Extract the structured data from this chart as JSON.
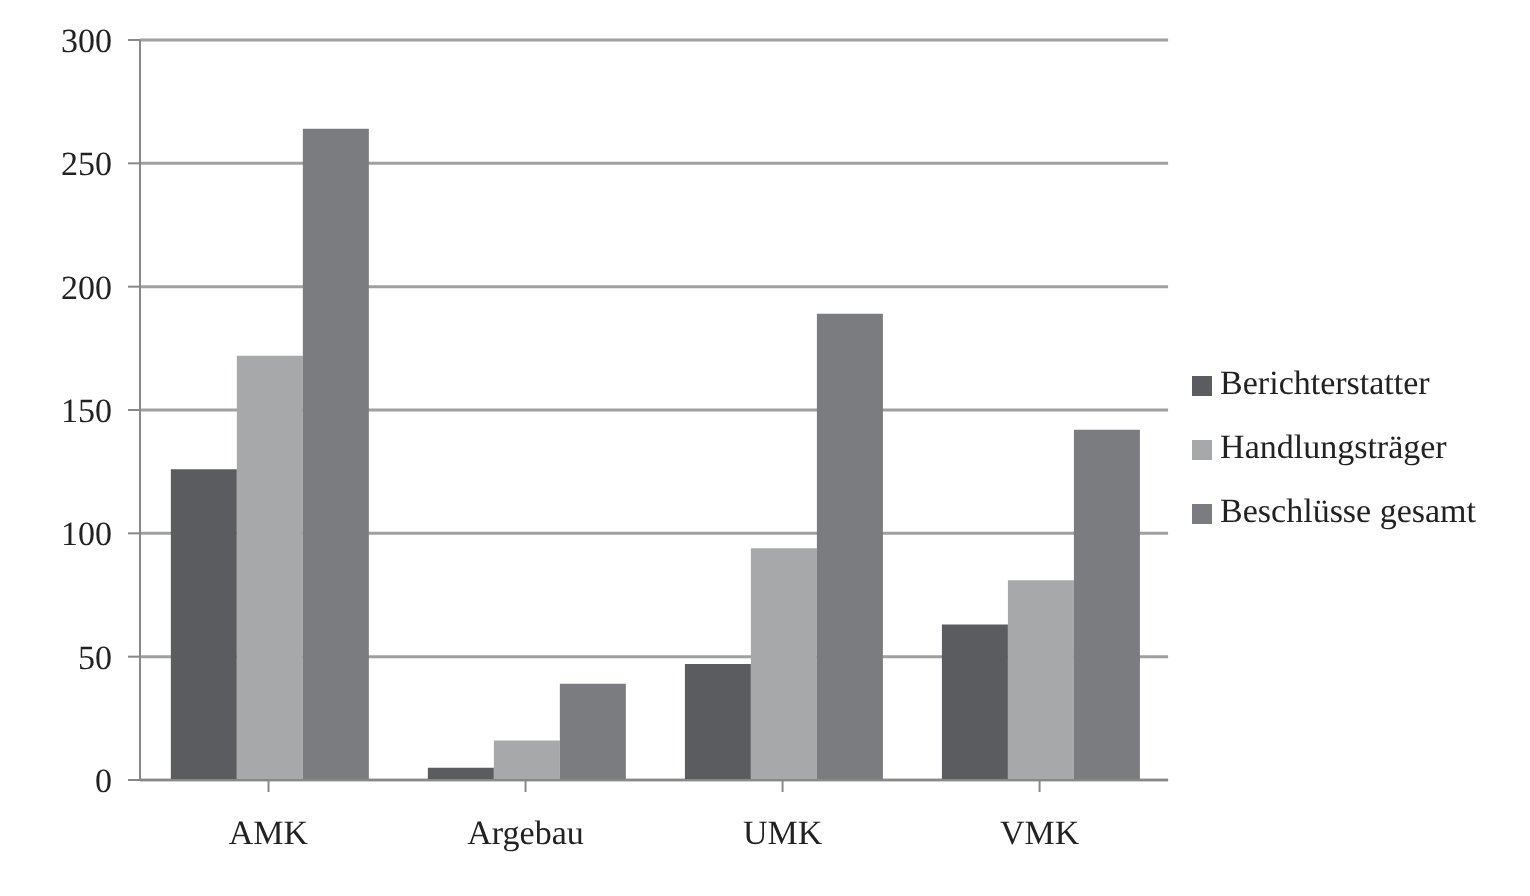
{
  "chart_data": {
    "type": "bar",
    "categories": [
      "AMK",
      "Argebau",
      "UMK",
      "VMK"
    ],
    "series": [
      {
        "name": "Berichterstatter",
        "color": "#5b5c5f",
        "values": [
          126,
          5,
          47,
          63
        ]
      },
      {
        "name": "Handlungsträger",
        "color": "#a7a8aa",
        "values": [
          172,
          16,
          94,
          81
        ]
      },
      {
        "name": "Beschlüsse gesamt",
        "color": "#7b7c7f",
        "values": [
          264,
          39,
          189,
          142
        ]
      }
    ],
    "ylim": [
      0,
      300
    ],
    "yticks": [
      0,
      50,
      100,
      150,
      200,
      250,
      300
    ],
    "grid": "y",
    "legend": "right"
  }
}
